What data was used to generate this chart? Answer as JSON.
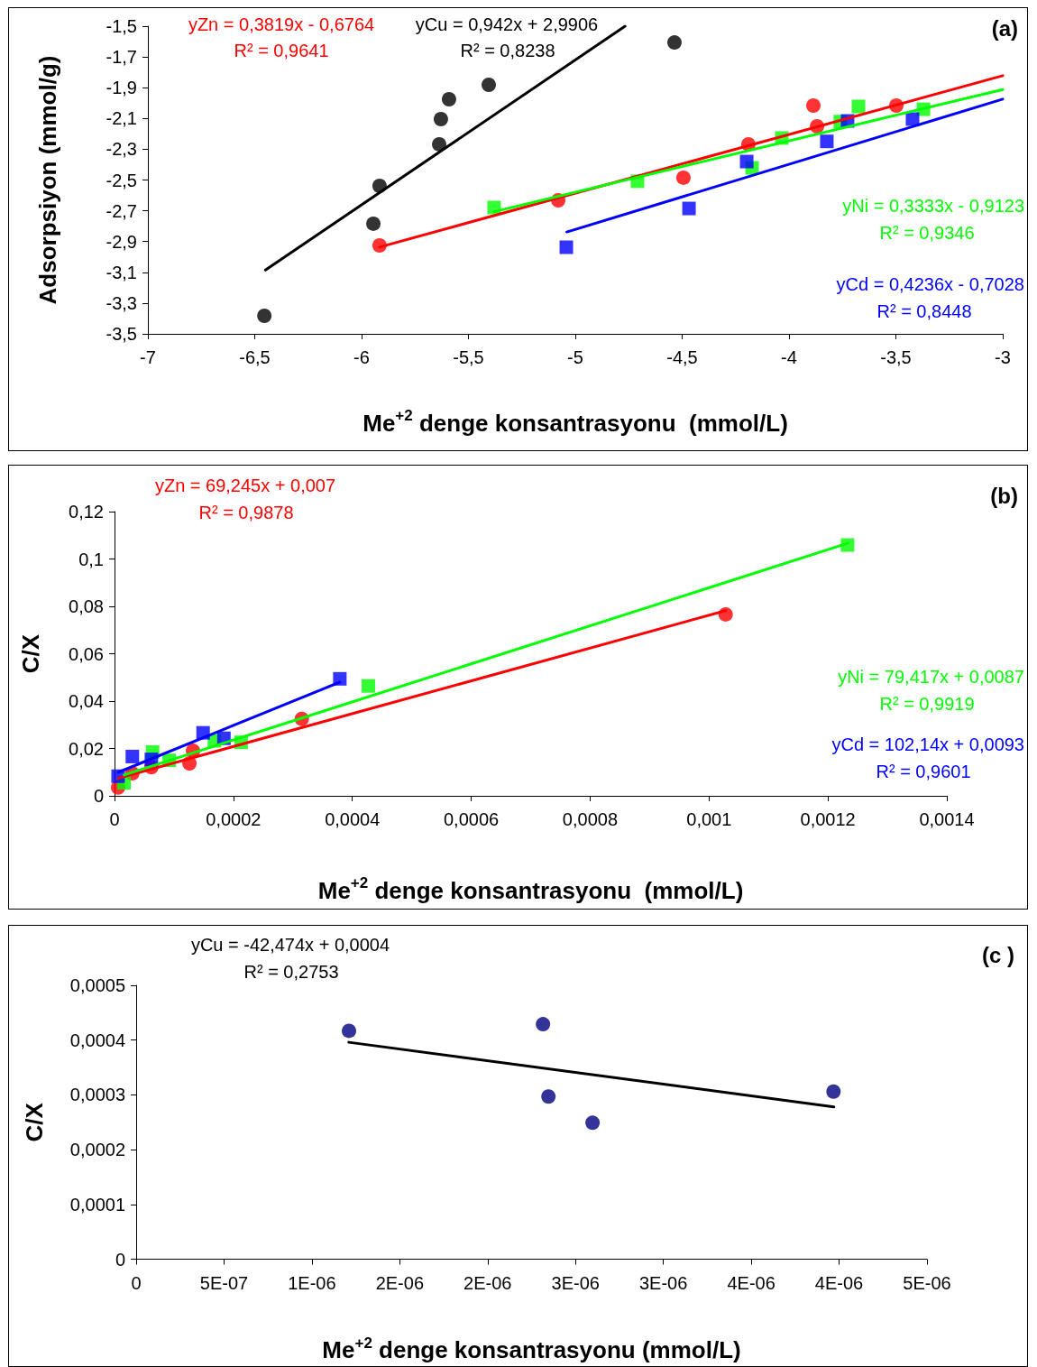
{
  "chart_data": [
    {
      "type": "scatter",
      "xlabel": "Me$^{+2}$ denge konsantrasyonu  (mmol/L)",
      "ylabel": "Adsorpsiyon (mmol/g)",
      "xlim": [
        -7,
        -3
      ],
      "xticks": [
        -7,
        {
          "value": -6.5,
          "label": "-6,5"
        },
        -6,
        {
          "value": -5.5,
          "label": "-5,5"
        },
        -5,
        {
          "value": -4.5,
          "label": "-4,5"
        },
        -4,
        {
          "value": -3.5,
          "label": "-3,5"
        },
        -3
      ],
      "ylim": [
        -3.5,
        -1.5
      ],
      "yticks": [
        {
          "value": -3.5,
          "label": "-3,5"
        },
        {
          "value": -3.3,
          "label": "-3,3"
        },
        {
          "value": -3.1,
          "label": "-3,1"
        },
        {
          "value": -2.9,
          "label": "-2,9"
        },
        {
          "value": -2.7,
          "label": "-2,7"
        },
        {
          "value": -2.5,
          "label": "-2,5"
        },
        {
          "value": -2.3,
          "label": "-2,3"
        },
        {
          "value": -2.1,
          "label": "-2,1"
        },
        {
          "value": -1.9,
          "label": "-1,9"
        },
        {
          "value": -1.7,
          "label": "-1,7"
        },
        {
          "value": -1.5,
          "label": "-1,5"
        }
      ],
      "grid": false,
      "annotations": [
        "(a)",
        "yZn = 0,3819x - 0,6764",
        "R² = 0,9641",
        "yCu = 0,942x + 2,9906",
        "R² = 0,8238",
        "yNi = 0,3333x - 0,9123",
        "R² = 0,9346",
        "yCd = 0,4236x - 0,7028",
        "R² = 0,8448"
      ],
      "series": [
        {
          "color": "#000000",
          "marker": "circle",
          "x": [
            -6.455,
            -5.945,
            -5.916,
            -5.637,
            -5.629,
            -5.591,
            -5.405,
            -4.536
          ],
          "values": [
            -3.383,
            -2.784,
            -2.538,
            -2.268,
            -2.104,
            -1.975,
            -1.881,
            -1.606
          ]
        },
        {
          "color": "#ff0000",
          "marker": "circle",
          "x": [
            -5.916,
            -5.08,
            -4.494,
            -4.19,
            -3.886,
            -3.869,
            -3.498
          ],
          "values": [
            -2.925,
            -2.632,
            -2.485,
            -2.268,
            -2.016,
            -2.151,
            -2.016
          ]
        },
        {
          "color": "#00ff00",
          "marker": "square",
          "x": [
            -5.38,
            -4.709,
            -4.173,
            -4.034,
            -3.76,
            -3.675,
            -3.371
          ],
          "values": [
            -2.679,
            -2.508,
            -2.421,
            -2.227,
            -2.12,
            -2.022,
            -2.04
          ]
        },
        {
          "color": "#0000ff",
          "marker": "square",
          "x": [
            -5.042,
            -4.468,
            -4.198,
            -3.823,
            -3.726,
            -3.422
          ],
          "values": [
            -2.937,
            -2.685,
            -2.38,
            -2.249,
            -2.116,
            -2.104
          ]
        },
        {
          "type": "line",
          "color": "#000000",
          "marker": "none",
          "x": [
            -6.45,
            -4.767
          ],
          "values": [
            -3.085,
            -1.5
          ]
        },
        {
          "type": "line",
          "color": "#ff0000",
          "marker": "none",
          "x": [
            -5.916,
            -3
          ],
          "values": [
            -2.936,
            -1.822
          ]
        },
        {
          "type": "line",
          "color": "#00ff00",
          "marker": "none",
          "x": [
            -5.38,
            -3
          ],
          "values": [
            -2.706,
            -1.912
          ]
        },
        {
          "type": "line",
          "color": "#0000ff",
          "marker": "none",
          "x": [
            -5.04,
            -3
          ],
          "values": [
            -2.838,
            -1.974
          ]
        }
      ]
    },
    {
      "type": "scatter",
      "xlabel": "Me$^{+2}$ denge konsantrasyonu  (mmol/L)",
      "ylabel": "C/X",
      "xlim": [
        0,
        0.0014
      ],
      "xticks": [
        0,
        {
          "value": 0.0002,
          "label": "0,0002"
        },
        {
          "value": 0.0004,
          "label": "0,0004"
        },
        {
          "value": 0.0006,
          "label": "0,0006"
        },
        {
          "value": 0.0008,
          "label": "0,0008"
        },
        {
          "value": 0.001,
          "label": "0,001"
        },
        {
          "value": 0.0012,
          "label": "0,0012"
        },
        {
          "value": 0.0014,
          "label": "0,0014"
        }
      ],
      "ylim": [
        0,
        0.12
      ],
      "yticks": [
        0,
        {
          "value": 0.02,
          "label": "0,02"
        },
        {
          "value": 0.04,
          "label": "0,04"
        },
        {
          "value": 0.06,
          "label": "0,06"
        },
        {
          "value": 0.08,
          "label": "0,08"
        },
        {
          "value": 0.1,
          "label": "0,1"
        },
        {
          "value": 0.12,
          "label": "0,12"
        }
      ],
      "grid": false,
      "annotations": [
        "(b)",
        "yZn = 69,245x + 0,007",
        "R² = 0,9878",
        "yNi = 79,417x + 0,0087",
        "R² = 0,9919",
        "yCd = 102,14x + 0,0093",
        "R² = 0,9601"
      ],
      "series": [
        {
          "color": "#ff0000",
          "marker": "circle",
          "x": [
            6e-06,
            3e-05,
            6.2e-05,
            0.000126,
            0.000132,
            0.000315,
            0.001028
          ],
          "values": [
            0.0035,
            0.0095,
            0.0121,
            0.0137,
            0.019,
            0.0325,
            0.0766
          ]
        },
        {
          "color": "#00ff00",
          "marker": "square",
          "x": [
            1.6e-05,
            6.4e-05,
            9.2e-05,
            0.000168,
            0.000213,
            0.000427,
            0.001233
          ],
          "values": [
            0.0055,
            0.0185,
            0.015,
            0.0232,
            0.0226,
            0.0464,
            0.1059
          ]
        },
        {
          "color": "#0000ff",
          "marker": "square",
          "x": [
            6e-06,
            3e-05,
            6.2e-05,
            0.000149,
            0.000184,
            0.000379
          ],
          "values": [
            0.0083,
            0.0166,
            0.0154,
            0.0266,
            0.0243,
            0.0494
          ]
        },
        {
          "type": "line",
          "color": "#ff0000",
          "marker": "none",
          "x": [
            6e-06,
            0.001028
          ],
          "values": [
            0.0074,
            0.0782
          ]
        },
        {
          "type": "line",
          "color": "#00ff00",
          "marker": "none",
          "x": [
            1.6e-05,
            0.001233
          ],
          "values": [
            0.0088,
            0.1066
          ]
        },
        {
          "type": "line",
          "color": "#0000ff",
          "marker": "none",
          "x": [
            6e-06,
            0.000379
          ],
          "values": [
            0.0099,
            0.048
          ]
        }
      ]
    },
    {
      "type": "scatter",
      "xlabel": "Me$^{+2}$ denge konsantrasyonu (mmol/L)",
      "ylabel": "C/X",
      "xlim": [
        0,
        4.5e-06
      ],
      "xticks": [
        0,
        {
          "value": 5e-07,
          "label": "5E-07"
        },
        {
          "value": 1e-06,
          "label": "1E-06"
        },
        {
          "value": 1.5e-06,
          "label": "2E-06"
        },
        {
          "value": 2e-06,
          "label": "2E-06"
        },
        {
          "value": 2.5e-06,
          "label": "3E-06"
        },
        {
          "value": 3e-06,
          "label": "3E-06"
        },
        {
          "value": 3.5e-06,
          "label": "4E-06"
        },
        {
          "value": 4e-06,
          "label": "4E-06"
        },
        {
          "value": 4.5e-06,
          "label": "5E-06"
        }
      ],
      "ylim": [
        0,
        0.0005
      ],
      "yticks": [
        0,
        {
          "value": 0.0001,
          "label": "0,0001"
        },
        {
          "value": 0.0002,
          "label": "0,0002"
        },
        {
          "value": 0.0003,
          "label": "0,0003"
        },
        {
          "value": 0.0004,
          "label": "0,0004"
        },
        {
          "value": 0.0005,
          "label": "0,0005"
        }
      ],
      "grid": false,
      "annotations": [
        "(c )",
        "yCu = -42,474x + 0,0004",
        "R² = 0,2753"
      ],
      "series": [
        {
          "color": "#000080",
          "marker": "circle",
          "x": [
            1.211e-06,
            2.315e-06,
            2.346e-06,
            2.597e-06,
            3.968e-06
          ],
          "values": [
            0.000417,
            0.000429,
            0.000297,
            0.000249,
            0.000306
          ]
        },
        {
          "type": "line",
          "color": "#000000",
          "marker": "none",
          "x": [
            1.21e-06,
            3.97e-06
          ],
          "values": [
            0.000396,
            0.000278
          ]
        }
      ]
    }
  ]
}
